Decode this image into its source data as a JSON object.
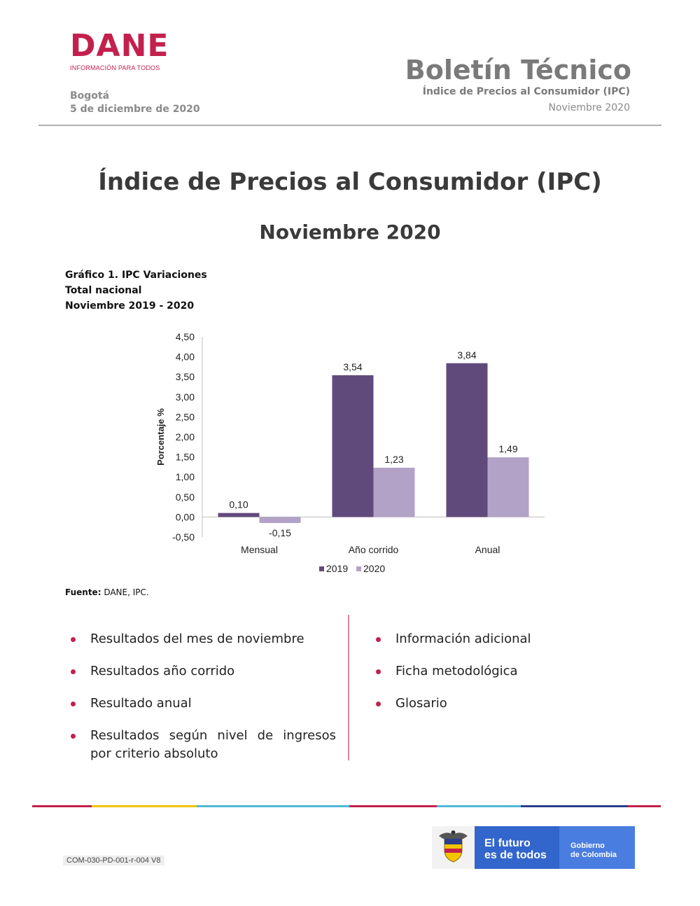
{
  "header": {
    "logo_text": "DANE",
    "logo_tagline": "INFORMACIÓN PARA TODOS",
    "city": "Bogotá",
    "date": "5 de diciembre de 2020",
    "bulletin_title": "Boletín Técnico",
    "bulletin_subtitle": "Índice de Precios al Consumidor (IPC)",
    "bulletin_period": "Noviembre 2020"
  },
  "main": {
    "title": "Índice de Precios al Consumidor (IPC)",
    "subtitle": "Noviembre 2020"
  },
  "chart_caption": {
    "line1": "Gráfico 1. IPC Variaciones",
    "line2": "Total nacional",
    "line3": "Noviembre 2019 - 2020"
  },
  "chart_data": {
    "type": "bar",
    "categories": [
      "Mensual",
      "Año corrido",
      "Anual"
    ],
    "series": [
      {
        "name": "2019",
        "values": [
          0.1,
          3.54,
          3.84
        ],
        "labels": [
          "0,10",
          "3,54",
          "3,84"
        ],
        "color": "#604a7b"
      },
      {
        "name": "2020",
        "values": [
          -0.15,
          1.23,
          1.49
        ],
        "labels": [
          "-0,15",
          "1,23",
          "1,49"
        ],
        "color": "#b3a2c7"
      }
    ],
    "ylabel": "Porcentaje %",
    "ylim": [
      -0.5,
      4.5
    ],
    "yticks": [
      "-0,50",
      "0,00",
      "0,50",
      "1,00",
      "1,50",
      "2,00",
      "2,50",
      "3,00",
      "3,50",
      "4,00",
      "4,50"
    ],
    "legend_position": "bottom",
    "grid": false
  },
  "source": {
    "label": "Fuente:",
    "text": " DANE, IPC."
  },
  "toc": {
    "left": [
      "Resultados del mes de noviembre",
      "Resultados año corrido",
      "Resultado anual",
      "Resultados según nivel de ingresos por criterio absoluto"
    ],
    "right": [
      "Información adicional",
      "Ficha metodológica",
      "Glosario"
    ]
  },
  "footer": {
    "code": "COM-030-PD-001-r-004 V8",
    "gov_line1": "El futuro",
    "gov_line2": "es de todos",
    "gov_line3": "Gobierno",
    "gov_line4": "de Colombia",
    "stripe_colors": [
      "#c3204d",
      "#f2c500",
      "#4fb8d8",
      "#c3204d",
      "#4fb8d8",
      "#2b3f8c",
      "#c3204d"
    ]
  },
  "colors": {
    "brand": "#c3204d",
    "series_2019": "#604a7b",
    "series_2020": "#b3a2c7"
  }
}
